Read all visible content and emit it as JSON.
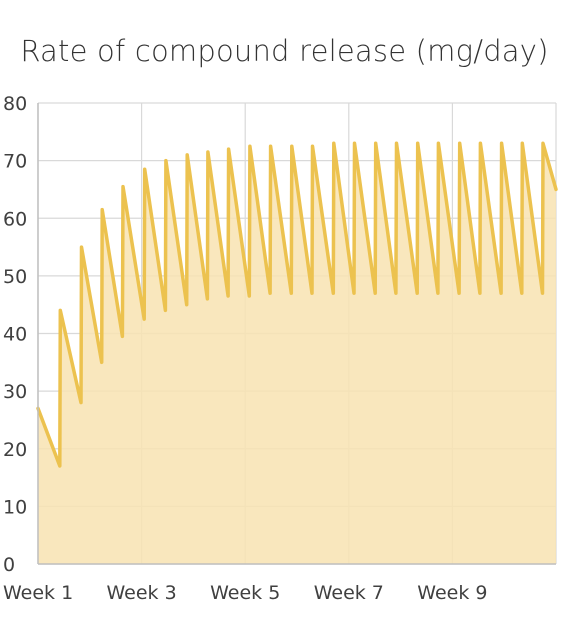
{
  "chart_data": {
    "type": "area",
    "title": "Rate of compound release (mg/day)",
    "xlabel": "",
    "ylabel": "",
    "ylim": [
      0,
      80
    ],
    "yticks": [
      0,
      10,
      20,
      30,
      40,
      50,
      60,
      70,
      80
    ],
    "xlim": [
      1,
      11
    ],
    "xticks": [
      {
        "value": 1,
        "label": "Week 1"
      },
      {
        "value": 3,
        "label": "Week 3"
      },
      {
        "value": 5,
        "label": "Week 5"
      },
      {
        "value": 7,
        "label": "Week 7"
      },
      {
        "value": 9,
        "label": "Week 9"
      }
    ],
    "grid": true,
    "colors": {
      "line": "#ecc24f",
      "fill": "#f8e3b1",
      "grid": "#d9d9d9",
      "axis": "#bfbfbf"
    },
    "series": [
      {
        "values": [
          [
            1.0,
            27
          ],
          [
            1.42,
            17
          ],
          [
            1.43,
            44
          ],
          [
            1.83,
            28
          ],
          [
            1.84,
            55
          ],
          [
            2.23,
            35
          ],
          [
            2.24,
            61.5
          ],
          [
            2.63,
            39.5
          ],
          [
            2.64,
            65.5
          ],
          [
            3.05,
            42.5
          ],
          [
            3.06,
            68.5
          ],
          [
            3.46,
            44
          ],
          [
            3.47,
            70
          ],
          [
            3.87,
            45
          ],
          [
            3.88,
            71
          ],
          [
            4.27,
            46
          ],
          [
            4.28,
            71.5
          ],
          [
            4.67,
            46.5
          ],
          [
            4.68,
            72
          ],
          [
            5.08,
            46.5
          ],
          [
            5.09,
            72.5
          ],
          [
            5.48,
            47
          ],
          [
            5.49,
            72.5
          ],
          [
            5.89,
            47
          ],
          [
            5.9,
            72.5
          ],
          [
            6.29,
            47
          ],
          [
            6.3,
            72.5
          ],
          [
            6.7,
            47
          ],
          [
            6.71,
            73
          ],
          [
            7.1,
            47
          ],
          [
            7.11,
            73
          ],
          [
            7.51,
            47
          ],
          [
            7.52,
            73
          ],
          [
            7.91,
            47
          ],
          [
            7.92,
            73
          ],
          [
            8.32,
            47
          ],
          [
            8.33,
            73
          ],
          [
            8.72,
            47
          ],
          [
            8.73,
            73
          ],
          [
            9.13,
            47
          ],
          [
            9.14,
            73
          ],
          [
            9.53,
            47
          ],
          [
            9.54,
            73
          ],
          [
            9.94,
            47
          ],
          [
            9.95,
            73
          ],
          [
            10.34,
            47
          ],
          [
            10.35,
            73
          ],
          [
            10.74,
            47
          ],
          [
            10.75,
            73
          ],
          [
            11.0,
            65
          ]
        ]
      }
    ]
  }
}
